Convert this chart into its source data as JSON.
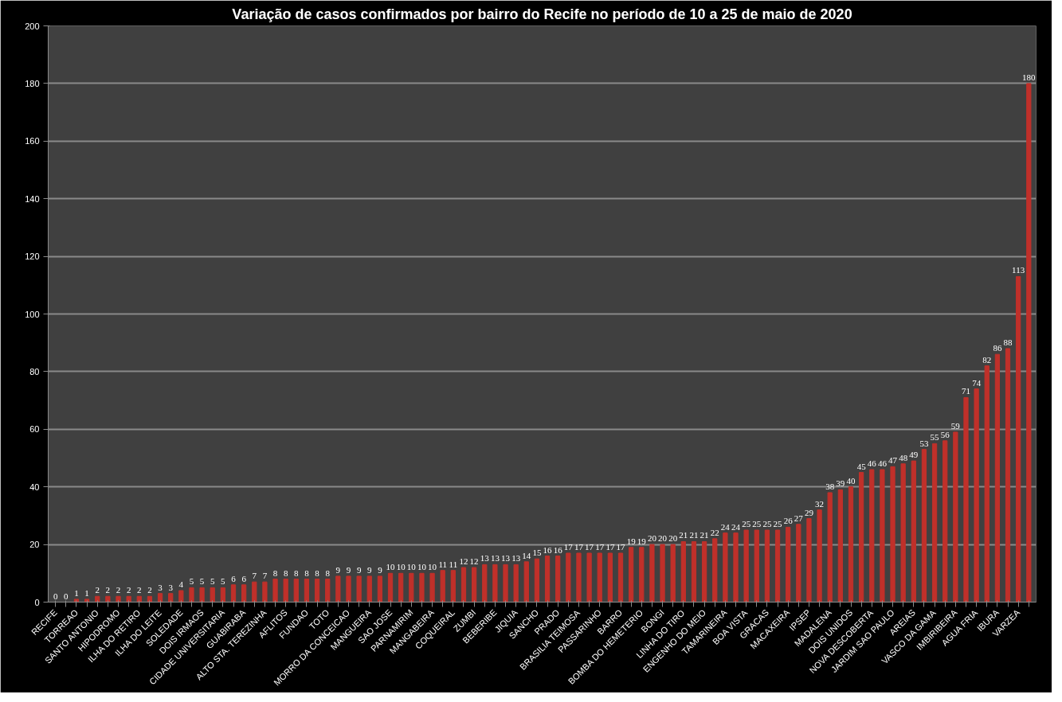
{
  "chart_data": {
    "type": "bar",
    "title": "Variação de casos confirmados por bairro do Recife no período de 10 a 25 de maio de 2020",
    "categories": [
      "RECIFE",
      null,
      "TORREAO",
      null,
      "SANTO ANTONIO",
      null,
      "HIPODROMO",
      null,
      "ILHA DO RETIRO",
      null,
      "ILHA DO LEITE",
      null,
      "SOLEDADE",
      null,
      "DOIS IRMAOS",
      null,
      "CIDADE UNIVERSITARIA",
      null,
      "GUABIRABA",
      null,
      "ALTO STA. TEREZINHA",
      null,
      "AFLITOS",
      null,
      "FUNDAO",
      null,
      "TOTO",
      null,
      "MORRO DA CONCEICAO",
      null,
      "MANGUEIRA",
      null,
      "SAO JOSE",
      null,
      "PARNAMIRIM",
      null,
      "MANGABEIRA",
      null,
      "COQUEIRAL",
      null,
      "ZUMBI",
      null,
      "BEBERIBE",
      null,
      "JIQUIA",
      null,
      "SANCHO",
      null,
      "PRADO",
      null,
      "BRASILIA TEIMOSA",
      null,
      "PASSARINHO",
      null,
      "BARRO",
      null,
      "BOMBA DO HEMETERIO",
      null,
      "BONGI",
      null,
      "LINHA DO TIRO",
      null,
      "ENGENHO DO MEIO",
      null,
      "TAMARINEIRA",
      null,
      "BOA VISTA",
      null,
      "GRACAS",
      null,
      "MACAXEIRA",
      null,
      "IPSEP",
      null,
      "MADALENA",
      null,
      "DOIS UNIDOS",
      null,
      "NOVA DESCOBERTA",
      null,
      "JARDIM SAO PAULO",
      null,
      "AREIAS",
      null,
      "VASCO DA GAMA",
      null,
      "IMBIRIBEIRA",
      null,
      "AGUA FRIA",
      null,
      "IBURA",
      null,
      "VARZEA",
      null
    ],
    "values": [
      0,
      0,
      1,
      1,
      2,
      2,
      2,
      2,
      2,
      2,
      3,
      3,
      4,
      5,
      5,
      5,
      5,
      6,
      6,
      7,
      7,
      8,
      8,
      8,
      8,
      8,
      8,
      9,
      9,
      9,
      9,
      9,
      10,
      10,
      10,
      10,
      10,
      11,
      11,
      12,
      12,
      13,
      13,
      13,
      13,
      14,
      15,
      16,
      16,
      17,
      17,
      17,
      17,
      17,
      17,
      19,
      19,
      20,
      20,
      20,
      21,
      21,
      21,
      22,
      24,
      24,
      25,
      25,
      25,
      25,
      26,
      27,
      29,
      32,
      38,
      39,
      40,
      45,
      46,
      46,
      47,
      48,
      49,
      53,
      55,
      56,
      59,
      71,
      74,
      82,
      86,
      88,
      113,
      180
    ],
    "color": "#c0302a",
    "ylim": [
      0,
      200
    ],
    "yticks": [
      0,
      20,
      40,
      60,
      80,
      100,
      120,
      140,
      160,
      180,
      200
    ],
    "grid": "y",
    "data_labels": true
  }
}
